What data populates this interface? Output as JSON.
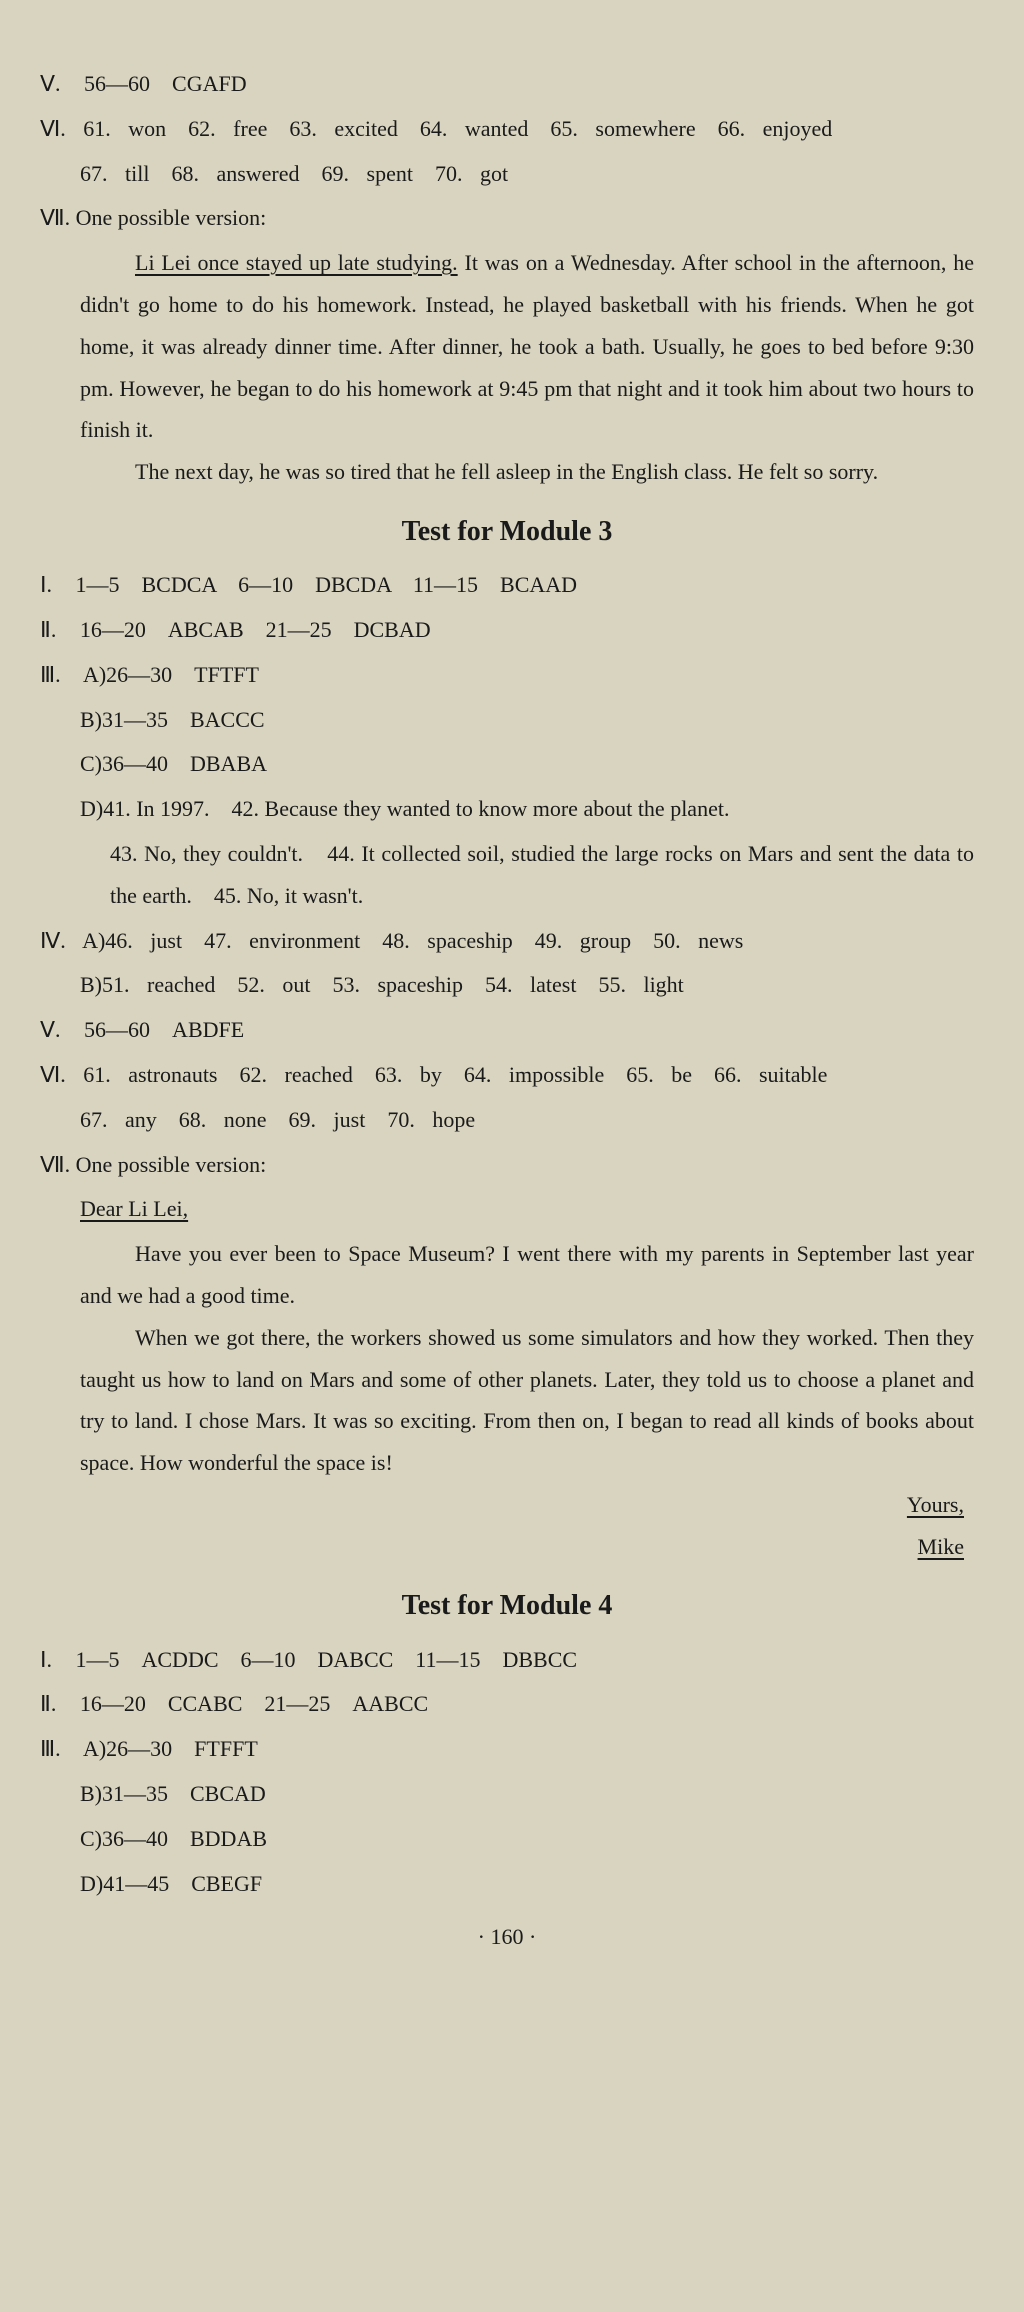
{
  "colors": {
    "bg": "#d8d4c0",
    "text": "#1a1a1a"
  },
  "typography": {
    "body_fontsize": 22,
    "heading_fontsize": 28,
    "family": "Times New Roman"
  },
  "pre_v": "Ⅴ. 56—60　CGAFD",
  "pre_vi_line1": "Ⅵ. 61. won　62. free　63. excited　64. wanted　65. somewhere　66. enjoyed",
  "pre_vi_line2": "67. till　68. answered　69. spent　70. got",
  "pre_vii_label": "Ⅶ. One possible version:",
  "pre_vii_frag_u": "Li Lei once stayed up late studying.",
  "pre_vii_frag_rest": " It was on a Wednesday. After school in the afternoon, he didn't go home to do his homework. Instead, he played basketball with his friends. When he got home, it was already dinner time. After dinner, he took a bath. Usually, he goes to bed before 9:30 pm. However, he began to do his homework at 9:45 pm that night and it took him about two hours to finish it.",
  "pre_vii_p2": "The next day, he was so tired that he fell asleep in the English class. He felt so sorry.",
  "m3_heading": "Test for Module 3",
  "m3_i": "Ⅰ. 1—5　BCDCA　6—10　DBCDA　11—15　BCAAD",
  "m3_ii": "Ⅱ. 16—20　ABCAB　21—25　DCBAD",
  "m3_iii_a": "Ⅲ. A)26—30　TFTFT",
  "m3_iii_b": "B)31—35　BACCC",
  "m3_iii_c": "C)36—40　DBABA",
  "m3_iii_d1": "D)41. In 1997.　42. Because they wanted to know more about the planet.",
  "m3_iii_d2": "43. No, they couldn't.　44. It collected soil, studied the large rocks on Mars and sent the data to the earth.　45. No, it wasn't.",
  "m3_iv_a": "Ⅳ. A)46. just　47. environment　48. spaceship　49. group　50. news",
  "m3_iv_b": "B)51. reached　52. out　53. spaceship　54. latest　55. light",
  "m3_v": "Ⅴ. 56—60　ABDFE",
  "m3_vi_line1": "Ⅵ. 61. astronauts　62. reached　63. by　64. impossible　65. be　66. suitable",
  "m3_vi_line2": "67. any　68. none　69. just　70. hope",
  "m3_vii_label": "Ⅶ. One possible version:",
  "m3_vii_salutation": "Dear Li Lei,",
  "m3_vii_p1": "Have you ever been to Space Museum? I went there with my parents in September last year and we had a good time.",
  "m3_vii_p2": "When we got there, the workers showed us some simulators and how they worked. Then they taught us how to land on Mars and some of other planets. Later, they told us to choose a planet and try to land. I chose Mars. It was so exciting. From then on, I began to read all kinds of books about space. How wonderful the space is!",
  "m3_vii_yours": "Yours,",
  "m3_vii_sign": "Mike",
  "m4_heading": "Test for Module 4",
  "m4_i": "Ⅰ. 1—5　ACDDC　6—10　DABCC　11—15　DBBCC",
  "m4_ii": "Ⅱ. 16—20　CCABC　21—25　AABCC",
  "m4_iii_a": "Ⅲ. A)26—30　FTFFT",
  "m4_iii_b": "B)31—35　CBCAD",
  "m4_iii_c": "C)36—40　BDDAB",
  "m4_iii_d": "D)41—45　CBEGF",
  "page_number": "· 160 ·"
}
